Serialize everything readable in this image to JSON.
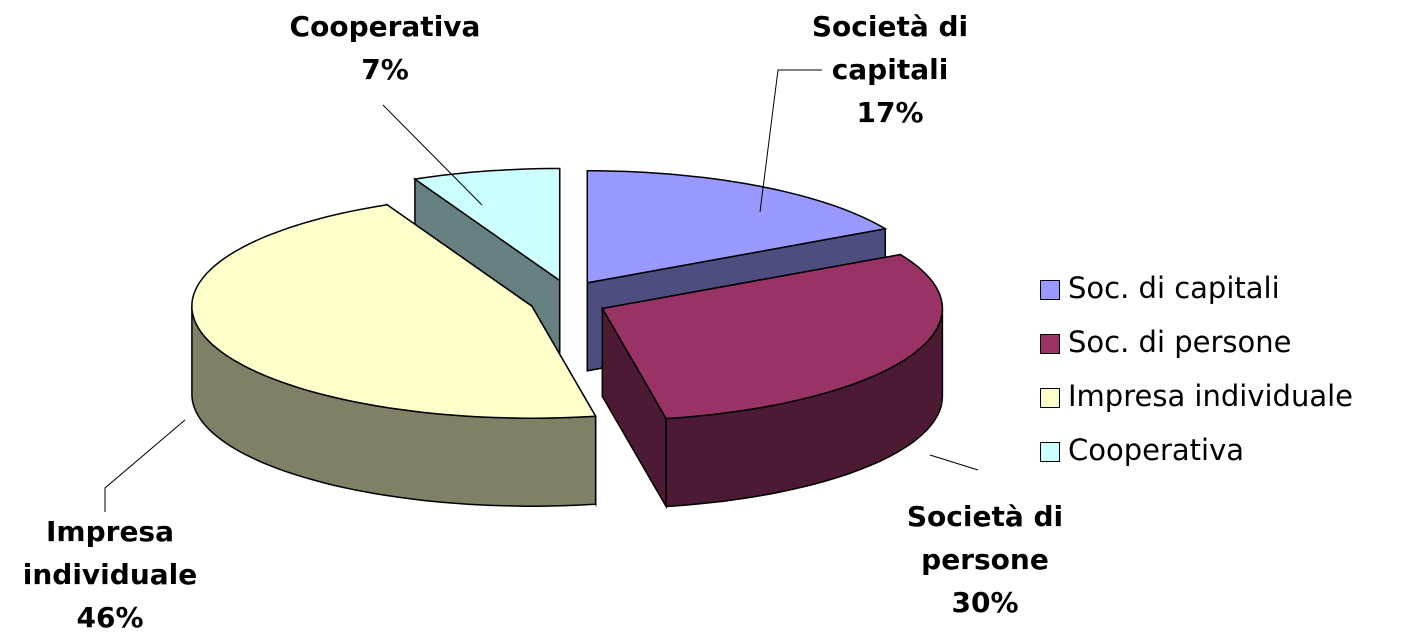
{
  "chart_data": {
    "type": "pie",
    "style": "3d-exploded",
    "categories": [
      "Soc. di capitali",
      "Soc. di persone",
      "Impresa individuale",
      "Cooperativa"
    ],
    "data_label_names": [
      "Società di capitali",
      "Società di persone",
      "Impresa individuale",
      "Cooperativa"
    ],
    "values": [
      17,
      30,
      46,
      7
    ],
    "value_labels": [
      "17%",
      "30%",
      "46%",
      "7%"
    ],
    "colors": [
      "#9999ff",
      "#993366",
      "#ffffcc",
      "#ccffff"
    ],
    "side_colors": [
      "#4d4d80",
      "#4d1a33",
      "#808066",
      "#668080"
    ],
    "legend": "right"
  }
}
